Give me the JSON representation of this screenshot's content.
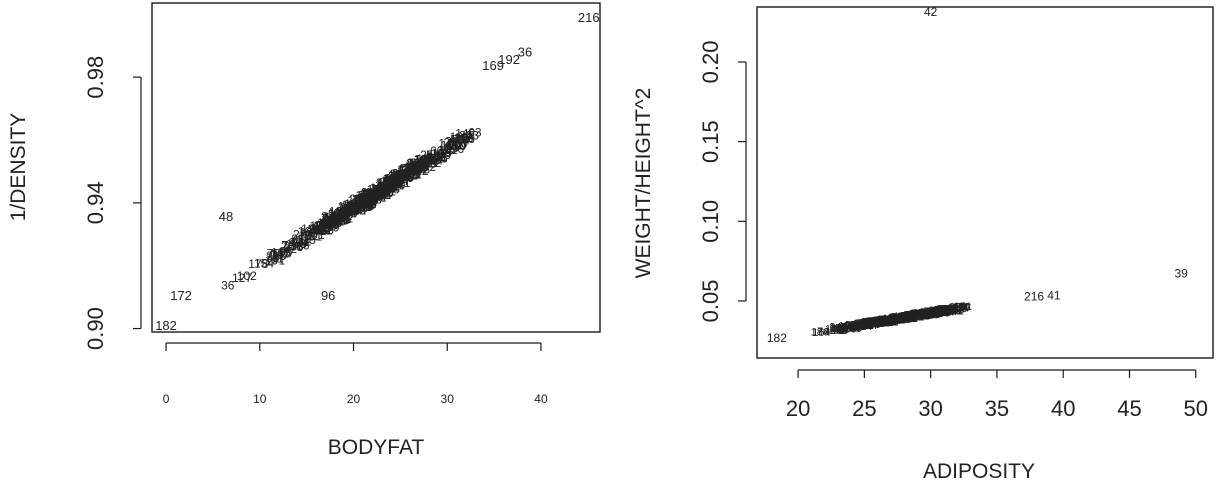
{
  "chart_data": [
    {
      "type": "scatter",
      "xlabel": "BODYFAT",
      "ylabel": "1/DENSITY",
      "xlim": [
        -1.5,
        46.3
      ],
      "ylim": [
        0.8989,
        1.0036
      ],
      "x_ticks": [
        0,
        10,
        20,
        30,
        40
      ],
      "x_tick_labels": [
        "0",
        "10",
        "20",
        "30",
        "40"
      ],
      "y_ticks": [
        0.9,
        0.94,
        0.98
      ],
      "y_tick_labels": [
        "0.90",
        "0.94",
        "0.98"
      ],
      "trend": {
        "slope": 0.00186,
        "intercept": 0.9013,
        "x_from": 3,
        "x_to": 33
      },
      "labeled_points": [
        {
          "label": "216",
          "x": 45.1,
          "y": 0.9988
        },
        {
          "label": "36",
          "x": 38.3,
          "y": 0.9878
        },
        {
          "label": "192",
          "x": 36.6,
          "y": 0.9855
        },
        {
          "label": "169",
          "x": 34.9,
          "y": 0.9835
        },
        {
          "label": "48",
          "x": 6.4,
          "y": 0.9355
        },
        {
          "label": "76",
          "x": 17.3,
          "y": 0.9349
        },
        {
          "label": "172",
          "x": 1.6,
          "y": 0.9104
        },
        {
          "label": "96",
          "x": 17.3,
          "y": 0.9104
        },
        {
          "label": "182",
          "x": 0.0,
          "y": 0.9008
        }
      ],
      "grid": false
    },
    {
      "type": "scatter",
      "xlabel": "ADIPOSITY",
      "ylabel": "WEIGHT/HEIGHT^2",
      "xlim": [
        16.9,
        51.3
      ],
      "ylim": [
        0.0142,
        0.2345
      ],
      "x_ticks": [
        20,
        25,
        30,
        35,
        40,
        45,
        50
      ],
      "x_tick_labels": [
        "20",
        "25",
        "30",
        "35",
        "40",
        "45",
        "50"
      ],
      "y_ticks": [
        0.05,
        0.1,
        0.15,
        0.2
      ],
      "y_tick_labels": [
        "0.05",
        "0.10",
        "0.15",
        "0.20"
      ],
      "trend": {
        "slope": 0.001421,
        "intercept": 0.0,
        "x_from": 19.5,
        "x_to": 33
      },
      "labeled_points": [
        {
          "label": "42",
          "x": 30.0,
          "y": 0.2313
        },
        {
          "label": "39",
          "x": 48.9,
          "y": 0.0672
        },
        {
          "label": "216",
          "x": 37.8,
          "y": 0.0528
        },
        {
          "label": "41",
          "x": 39.3,
          "y": 0.0535
        },
        {
          "label": "182",
          "x": 18.4,
          "y": 0.0268
        },
        {
          "label": "221",
          "x": 24.0,
          "y": 0.0333
        }
      ],
      "grid": false
    }
  ]
}
